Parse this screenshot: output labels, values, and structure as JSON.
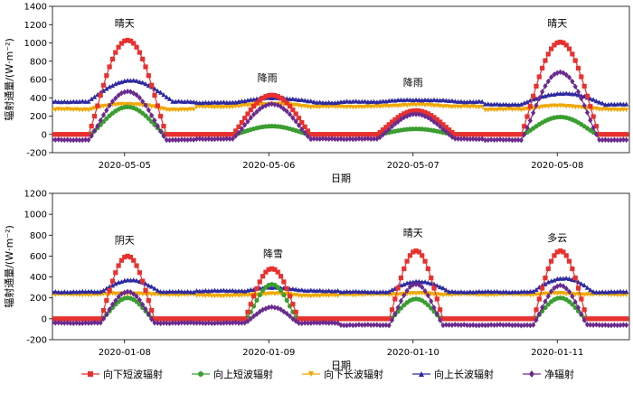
{
  "chart_data": [
    {
      "type": "line",
      "ylabel": "辐射通量/(W·m⁻²)",
      "xlabel": "日期",
      "ylim": [
        -200,
        1400
      ],
      "yticks": [
        -200,
        0,
        200,
        400,
        600,
        800,
        1000,
        1200,
        1400
      ],
      "xlim_days": [
        0,
        4
      ],
      "xticks": [
        {
          "pos": 0.5,
          "label": "2020-05-05"
        },
        {
          "pos": 1.5,
          "label": "2020-05-06"
        },
        {
          "pos": 2.5,
          "label": "2020-05-07"
        },
        {
          "pos": 3.5,
          "label": "2020-05-08"
        }
      ],
      "annotations": [
        {
          "text": "晴天",
          "day_pos": 0.5,
          "y": 1180
        },
        {
          "text": "降雨",
          "day_pos": 1.49,
          "y": 580
        },
        {
          "text": "降雨",
          "day_pos": 2.5,
          "y": 530
        },
        {
          "text": "晴天",
          "day_pos": 3.5,
          "y": 1180
        }
      ],
      "days": [
        {
          "sw_down": 1030,
          "sw_up": 300,
          "lw_down_night": 270,
          "lw_down_day": 330,
          "lw_up_night": 360,
          "lw_up_day": 590,
          "net_night": -60,
          "net_peak": 470
        },
        {
          "sw_down": 430,
          "sw_up": 90,
          "lw_down_night": 300,
          "lw_down_day": 330,
          "lw_up_night": 350,
          "lw_up_day": 400,
          "net_night": -50,
          "net_peak": 330
        },
        {
          "sw_down": 260,
          "sw_up": 60,
          "lw_down_night": 300,
          "lw_down_day": 320,
          "lw_up_night": 360,
          "lw_up_day": 380,
          "net_night": -50,
          "net_peak": 220
        },
        {
          "sw_down": 1010,
          "sw_up": 190,
          "lw_down_night": 270,
          "lw_down_day": 310,
          "lw_up_night": 330,
          "lw_up_day": 450,
          "net_night": -60,
          "net_peak": 680
        }
      ]
    },
    {
      "type": "line",
      "ylabel": "辐射通量/(W·m⁻²)",
      "xlabel": "日期",
      "ylim": [
        -200,
        1200
      ],
      "yticks": [
        -200,
        0,
        200,
        400,
        600,
        800,
        1000,
        1200
      ],
      "xlim_days": [
        0,
        4
      ],
      "xticks": [
        {
          "pos": 0.5,
          "label": "2020-01-08"
        },
        {
          "pos": 1.5,
          "label": "2020-01-09"
        },
        {
          "pos": 2.5,
          "label": "2020-01-10"
        },
        {
          "pos": 3.5,
          "label": "2020-01-11"
        }
      ],
      "annotations": [
        {
          "text": "阴天",
          "day_pos": 0.5,
          "y": 720
        },
        {
          "text": "降雪",
          "day_pos": 1.53,
          "y": 590
        },
        {
          "text": "晴天",
          "day_pos": 2.5,
          "y": 790
        },
        {
          "text": "多云",
          "day_pos": 3.5,
          "y": 740
        }
      ],
      "days": [
        {
          "sw_down": 600,
          "sw_up": 200,
          "lw_down_night": 230,
          "lw_down_day": 240,
          "lw_up_night": 260,
          "lw_up_day": 370,
          "net_night": -40,
          "net_peak": 260
        },
        {
          "sw_down": 480,
          "sw_up": 330,
          "lw_down_night": 220,
          "lw_down_day": 240,
          "lw_up_night": 270,
          "lw_up_day": 300,
          "net_night": -40,
          "net_peak": 110
        },
        {
          "sw_down": 650,
          "sw_up": 190,
          "lw_down_night": 230,
          "lw_down_day": 240,
          "lw_up_night": 260,
          "lw_up_day": 360,
          "net_night": -60,
          "net_peak": 330
        },
        {
          "sw_down": 650,
          "sw_up": 200,
          "lw_down_night": 230,
          "lw_down_day": 240,
          "lw_up_night": 260,
          "lw_up_day": 390,
          "net_night": -60,
          "net_peak": 320
        }
      ]
    }
  ],
  "legend": [
    {
      "key": "sw_down",
      "label": "向下短波辐射",
      "color": "#e8312f",
      "marker": "square"
    },
    {
      "key": "sw_up",
      "label": "向上短波辐射",
      "color": "#3a9e30",
      "marker": "circle"
    },
    {
      "key": "lw_down",
      "label": "向下长波辐射",
      "color": "#f0a800",
      "marker": "triangle-down"
    },
    {
      "key": "lw_up",
      "label": "向上长波辐射",
      "color": "#2e2aa0",
      "marker": "triangle-up"
    },
    {
      "key": "net",
      "label": "净辐射",
      "color": "#6a2a8e",
      "marker": "diamond"
    }
  ]
}
